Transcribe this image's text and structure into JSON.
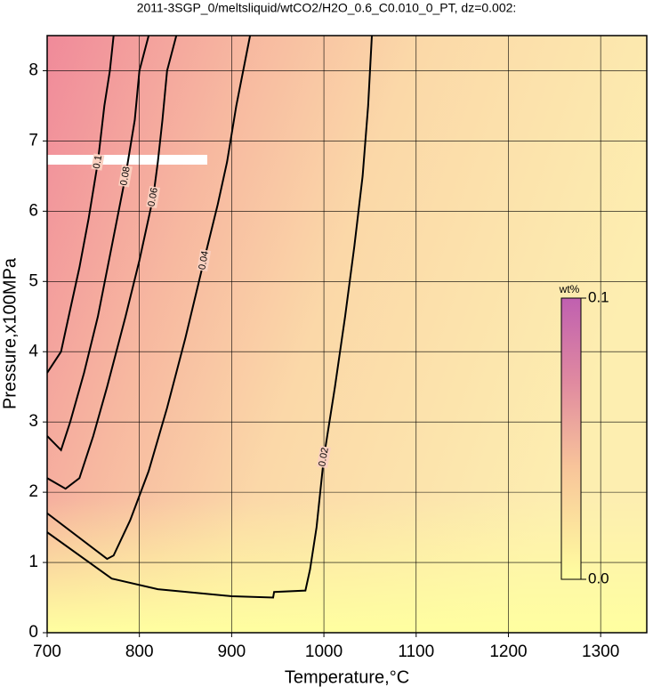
{
  "chart_data": {
    "type": "contour",
    "title": "2011-3SGP_0/meltsliquid/wtCO2/H2O_0.6_C0.010_0_PT, dz=0.002:",
    "x_label": "Temperature,°C",
    "y_label": "Pressure,x100MPa",
    "xlim": [
      700,
      1350
    ],
    "xticks": [
      700,
      800,
      900,
      1000,
      1100,
      1200,
      1300
    ],
    "ylim": [
      0,
      8.5
    ],
    "yticks": [
      0,
      1,
      2,
      3,
      4,
      5,
      6,
      7,
      8
    ],
    "grid": true,
    "colorbar": {
      "title": "wt%",
      "lim": [
        0,
        0.1
      ],
      "ticks": [
        {
          "value": 0,
          "label": "0.0"
        },
        0.1
      ]
    },
    "contours": [
      {
        "level": 0.02,
        "x": [
          700,
          770,
          820,
          900,
          945,
          946,
          980,
          985,
          992,
          1000,
          1012,
          1023,
          1033,
          1042,
          1048,
          1052
        ],
        "y": [
          1.43,
          0.77,
          0.62,
          0.52,
          0.5,
          0.58,
          0.6,
          0.9,
          1.5,
          2.5,
          3.5,
          4.5,
          5.5,
          6.5,
          7.5,
          8.5
        ]
      },
      {
        "level": 0.04,
        "x": [
          700,
          765,
          772,
          790,
          810,
          830,
          850,
          870,
          885,
          895,
          905,
          920
        ],
        "y": [
          1.7,
          1.05,
          1.1,
          1.6,
          2.3,
          3.2,
          4.2,
          5.3,
          6.1,
          6.7,
          7.5,
          8.5
        ]
      },
      {
        "level": 0.06,
        "x": [
          700,
          720,
          735,
          750,
          765,
          785,
          800,
          815,
          820,
          825,
          830,
          840
        ],
        "y": [
          2.2,
          2.05,
          2.2,
          2.8,
          3.5,
          4.5,
          5.3,
          6.2,
          6.7,
          7.3,
          8,
          8.5
        ]
      },
      {
        "level": 0.08,
        "x": [
          700,
          715,
          725,
          740,
          755,
          770,
          785,
          795,
          800,
          810
        ],
        "y": [
          2.8,
          2.6,
          3.0,
          3.7,
          4.5,
          5.5,
          6.5,
          7.3,
          8,
          8.5
        ]
      },
      {
        "level": 0.1,
        "x": [
          700,
          715,
          725,
          735,
          745,
          755,
          762,
          768,
          772
        ],
        "y": [
          3.7,
          4.0,
          4.6,
          5.2,
          5.9,
          6.7,
          7.5,
          8,
          8.5
        ]
      }
    ]
  }
}
